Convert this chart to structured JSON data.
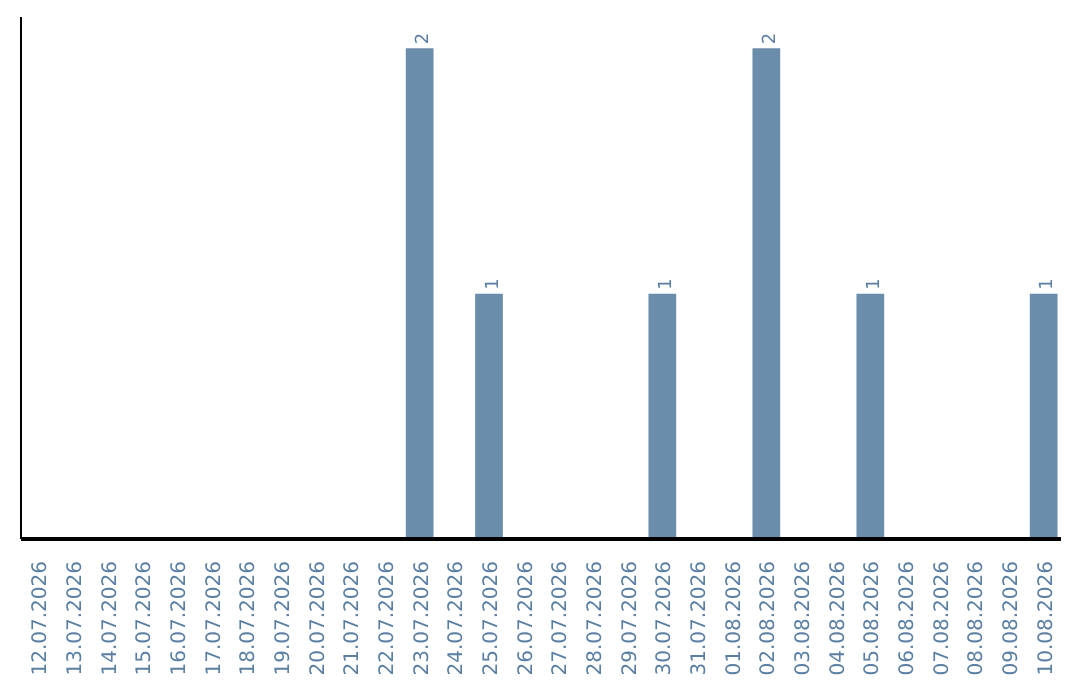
{
  "chart_data": {
    "type": "bar",
    "color": "#6b8dac",
    "categories": [
      "12.07.2026",
      "13.07.2026",
      "14.07.2026",
      "15.07.2026",
      "16.07.2026",
      "17.07.2026",
      "18.07.2026",
      "19.07.2026",
      "20.07.2026",
      "21.07.2026",
      "22.07.2026",
      "23.07.2026",
      "24.07.2026",
      "25.07.2026",
      "26.07.2026",
      "27.07.2026",
      "28.07.2026",
      "29.07.2026",
      "30.07.2026",
      "31.07.2026",
      "01.08.2026",
      "02.08.2026",
      "03.08.2026",
      "04.08.2026",
      "05.08.2026",
      "06.08.2026",
      "07.08.2026",
      "08.08.2026",
      "09.08.2026",
      "10.08.2026"
    ],
    "values": [
      0,
      0,
      0,
      0,
      0,
      0,
      0,
      0,
      0,
      0,
      0,
      2,
      0,
      1,
      0,
      0,
      0,
      0,
      1,
      0,
      0,
      2,
      0,
      0,
      1,
      0,
      0,
      0,
      0,
      1
    ],
    "value_labels": [
      null,
      null,
      null,
      null,
      null,
      null,
      null,
      null,
      null,
      null,
      null,
      "2",
      null,
      "1",
      null,
      null,
      null,
      null,
      "1",
      null,
      null,
      "2",
      null,
      null,
      "1",
      null,
      null,
      null,
      null,
      "1"
    ],
    "grid": false
  }
}
